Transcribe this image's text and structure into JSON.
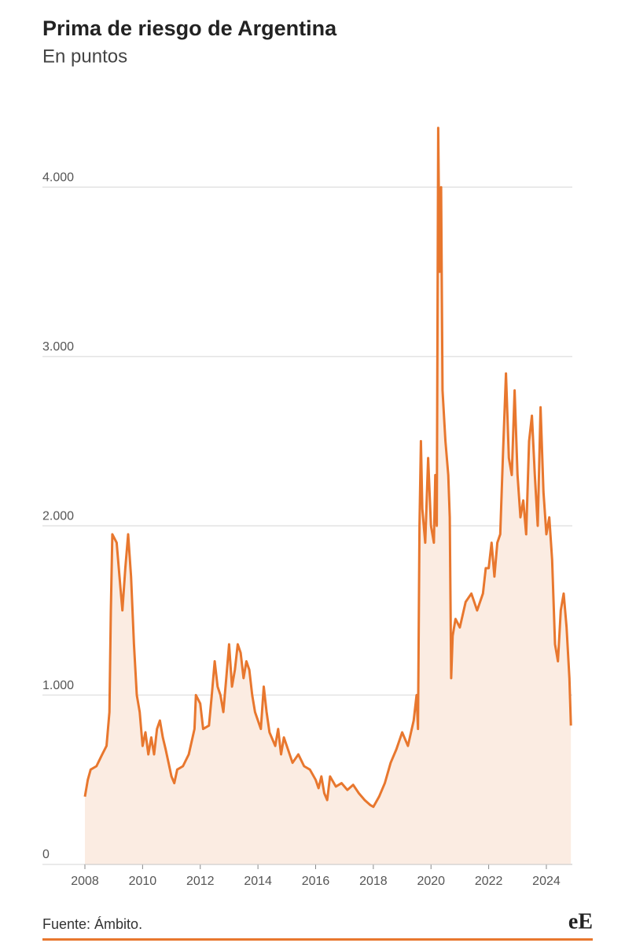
{
  "chart_data": {
    "type": "area",
    "title": "Prima de riesgo de Argentina",
    "subtitle": "En puntos",
    "source": "Fuente: Ámbito.",
    "logo": "eE",
    "color": "#e8772e",
    "fill_color": "#fbece2",
    "grid": true,
    "xlim": [
      2008,
      2024.9
    ],
    "xticks": [
      2008,
      2010,
      2012,
      2014,
      2016,
      2018,
      2020,
      2022,
      2024
    ],
    "ylim": [
      0,
      4400
    ],
    "yticks": [
      0,
      {
        "value": 1000,
        "label": "1.000"
      },
      {
        "value": 2000,
        "label": "2.000"
      },
      {
        "value": 3000,
        "label": "3.000"
      },
      {
        "value": 4000,
        "label": "4.000"
      }
    ],
    "x": [
      2008.0,
      2008.1,
      2008.2,
      2008.4,
      2008.6,
      2008.75,
      2008.85,
      2008.9,
      2008.95,
      2009.1,
      2009.2,
      2009.3,
      2009.4,
      2009.5,
      2009.6,
      2009.7,
      2009.8,
      2009.9,
      2010.0,
      2010.1,
      2010.2,
      2010.3,
      2010.4,
      2010.5,
      2010.6,
      2010.7,
      2010.8,
      2010.9,
      2011.0,
      2011.1,
      2011.2,
      2011.4,
      2011.6,
      2011.8,
      2011.85,
      2012.0,
      2012.1,
      2012.3,
      2012.4,
      2012.5,
      2012.6,
      2012.7,
      2012.8,
      2012.9,
      2013.0,
      2013.1,
      2013.2,
      2013.3,
      2013.4,
      2013.5,
      2013.6,
      2013.7,
      2013.8,
      2013.9,
      2014.0,
      2014.1,
      2014.2,
      2014.3,
      2014.4,
      2014.6,
      2014.7,
      2014.8,
      2014.9,
      2015.0,
      2015.2,
      2015.4,
      2015.6,
      2015.8,
      2016.0,
      2016.1,
      2016.2,
      2016.3,
      2016.4,
      2016.5,
      2016.7,
      2016.9,
      2017.1,
      2017.3,
      2017.5,
      2017.7,
      2017.9,
      2018.0,
      2018.2,
      2018.4,
      2018.6,
      2018.8,
      2019.0,
      2019.2,
      2019.4,
      2019.5,
      2019.55,
      2019.6,
      2019.65,
      2019.7,
      2019.8,
      2019.9,
      2020.0,
      2020.1,
      2020.15,
      2020.2,
      2020.25,
      2020.3,
      2020.35,
      2020.4,
      2020.5,
      2020.6,
      2020.65,
      2020.7,
      2020.75,
      2020.85,
      2021.0,
      2021.2,
      2021.4,
      2021.6,
      2021.8,
      2021.9,
      2022.0,
      2022.1,
      2022.2,
      2022.3,
      2022.4,
      2022.5,
      2022.6,
      2022.7,
      2022.8,
      2022.9,
      2023.0,
      2023.1,
      2023.2,
      2023.3,
      2023.4,
      2023.5,
      2023.6,
      2023.7,
      2023.8,
      2023.9,
      2024.0,
      2024.1,
      2024.2,
      2024.3,
      2024.4,
      2024.5,
      2024.6,
      2024.7,
      2024.8,
      2024.85
    ],
    "values": [
      400,
      500,
      560,
      580,
      650,
      700,
      900,
      1500,
      1950,
      1900,
      1700,
      1500,
      1750,
      1950,
      1700,
      1300,
      1000,
      900,
      700,
      780,
      650,
      750,
      650,
      800,
      850,
      750,
      680,
      600,
      520,
      480,
      560,
      580,
      650,
      800,
      1000,
      950,
      800,
      820,
      1000,
      1200,
      1050,
      1000,
      900,
      1100,
      1300,
      1050,
      1150,
      1300,
      1250,
      1100,
      1200,
      1150,
      1000,
      900,
      850,
      800,
      1050,
      900,
      780,
      700,
      800,
      650,
      750,
      700,
      600,
      650,
      580,
      560,
      500,
      450,
      520,
      420,
      380,
      520,
      460,
      480,
      440,
      470,
      420,
      380,
      350,
      340,
      400,
      480,
      600,
      680,
      780,
      700,
      850,
      1000,
      800,
      2000,
      2500,
      2100,
      1900,
      2400,
      2000,
      1900,
      2300,
      2000,
      4350,
      3500,
      4000,
      2800,
      2500,
      2300,
      2050,
      1100,
      1350,
      1450,
      1400,
      1550,
      1600,
      1500,
      1600,
      1750,
      1750,
      1900,
      1700,
      1900,
      1950,
      2450,
      2900,
      2400,
      2300,
      2800,
      2300,
      2050,
      2150,
      1950,
      2500,
      2650,
      2300,
      2000,
      2700,
      2200,
      1950,
      2050,
      1800,
      1300,
      1200,
      1500,
      1600,
      1400,
      1100,
      820
    ]
  }
}
